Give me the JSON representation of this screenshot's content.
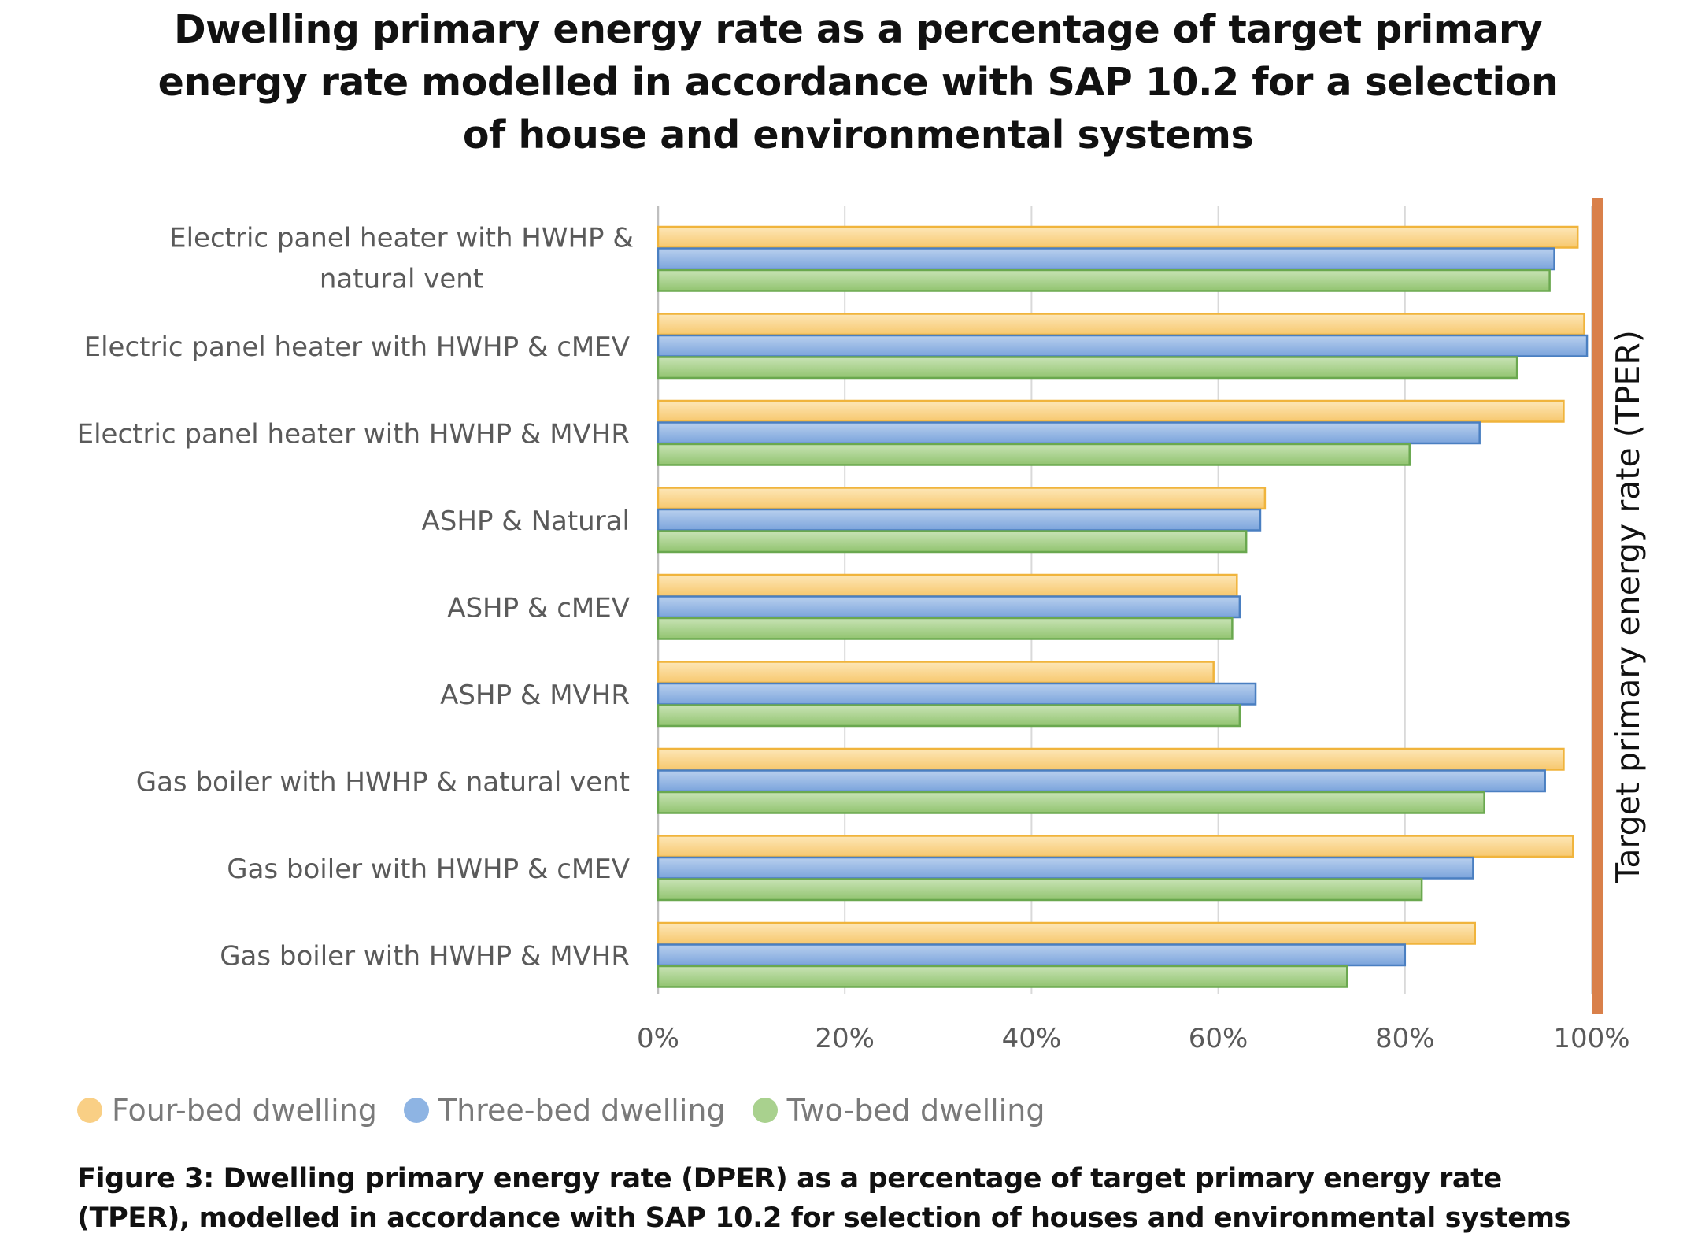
{
  "chart_data": {
    "type": "bar",
    "orientation": "horizontal",
    "title": "Dwelling primary energy rate as a percentage of target primary energy rate modelled in accordance with SAP 10.2 for a selection of house and environmental systems",
    "categories": [
      "Electric panel heater with HWHP & natural vent",
      "Electric panel heater with HWHP & cMEV",
      "Electric panel heater with HWHP & MVHR",
      "ASHP & Natural",
      "ASHP & cMEV",
      "ASHP & MVHR",
      "Gas boiler with HWHP & natural vent",
      "Gas boiler with HWHP & cMEV",
      "Gas boiler with HWHP & MVHR"
    ],
    "series": [
      {
        "name": "Four-bed dwelling",
        "color": "#f9cf85",
        "values": [
          98.5,
          99.2,
          97,
          65,
          62,
          59.5,
          97,
          98,
          87.5
        ]
      },
      {
        "name": "Three-bed dwelling",
        "color": "#8eb4e3",
        "values": [
          96,
          99.5,
          88,
          64.5,
          62.3,
          64,
          95,
          87.3,
          80
        ]
      },
      {
        "name": "Two-bed dwelling",
        "color": "#a9d18e",
        "values": [
          95.5,
          92,
          80.5,
          63,
          61.5,
          62.3,
          88.5,
          81.8,
          73.8
        ]
      }
    ],
    "xlim": [
      0,
      100
    ],
    "xticks": [
      "0%",
      "20%",
      "40%",
      "60%",
      "80%",
      "100%"
    ],
    "xlabel": "",
    "ylabel": "",
    "grid": true,
    "legend_position": "bottom-left",
    "reference_line": {
      "value": 100,
      "label": "Target primary energy rate (TPER)",
      "color": "#d9804a"
    }
  },
  "caption": "Figure 3: Dwelling primary energy rate (DPER) as a percentage of target primary energy rate (TPER), modelled in accordance with SAP 10.2 for selection of houses and environmental systems",
  "colors": {
    "four_bed_border": "#f0b43c",
    "three_bed_border": "#4a7fc1",
    "two_bed_border": "#6aa84f",
    "gridline": "#d9d9d9",
    "axis": "#bfbfbf"
  }
}
